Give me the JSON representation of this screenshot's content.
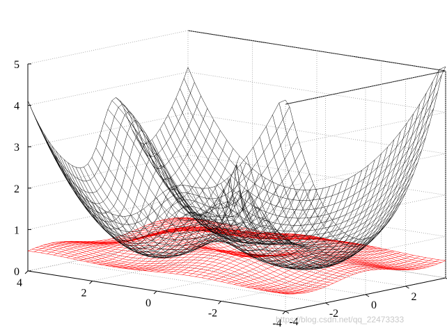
{
  "chart_data": {
    "type": "surface",
    "title": "",
    "xlabel": "",
    "ylabel": "",
    "zlabel": "",
    "xlim": [
      -4,
      4
    ],
    "ylim": [
      -4,
      4
    ],
    "zlim": [
      0,
      5
    ],
    "x_ticks": [
      "-4",
      "-2",
      "0",
      "2",
      "4"
    ],
    "y_ticks": [
      "-4",
      "-2",
      "0",
      "2",
      "4"
    ],
    "z_ticks": [
      "0",
      "1",
      "2",
      "3",
      "4",
      "5"
    ],
    "grid": true,
    "box": true,
    "series": [
      {
        "style": "mesh",
        "color": "#000000",
        "description_values": {
          "z_max_along_positive_x_axis": 5.0,
          "z_at_corners_approx": 4.0,
          "z_min_near_center_ring": 0.5
        }
      },
      {
        "style": "mesh",
        "color": "#ff0000",
        "description_values": {
          "z_range": [
            0.3,
            1.0
          ]
        }
      }
    ]
  },
  "watermark": "https://blog.csdn.net/qq_22473333"
}
